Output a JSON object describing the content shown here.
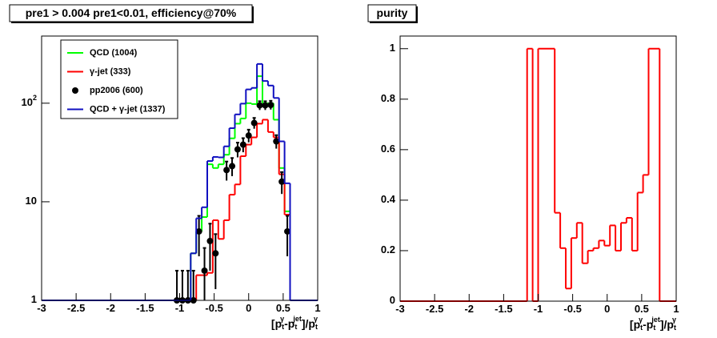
{
  "chart_data": [
    {
      "type": "histogram",
      "title": "pre1 > 0.004  pre1<0.01, efficiency@70%",
      "xlabel": "[p_{t}^{γ}-p_{t}^{jet}]/p_{t}^{γ}",
      "bins": [
        -3,
        -0.84,
        -0.76,
        -0.68,
        -0.6,
        -0.52,
        -0.44,
        -0.36,
        -0.28,
        -0.2,
        -0.12,
        -0.04,
        0.04,
        0.12,
        0.2,
        0.28,
        0.36,
        0.44,
        0.52,
        0.6,
        1
      ],
      "series": [
        {
          "name": "QCD (1004)",
          "color": "#00ff00",
          "values": [
            0,
            3,
            5,
            7,
            24,
            22,
            24,
            30,
            44,
            62,
            70,
            100,
            98,
            188,
            100,
            100,
            68,
            22,
            8,
            0
          ]
        },
        {
          "name": "γ-jet (333)",
          "color": "#ff0000",
          "values": [
            0,
            0,
            1.8,
            1.8,
            1.9,
            6.5,
            4.2,
            6.5,
            11.8,
            15,
            29,
            38,
            45,
            62,
            68,
            51,
            45,
            19,
            7.4,
            0
          ]
        },
        {
          "name": "pp2006 (600)",
          "color": "#000000",
          "x": [
            -1.04,
            -0.96,
            -0.88,
            -0.8,
            -0.72,
            -0.64,
            -0.56,
            -0.48,
            -0.32,
            -0.24,
            -0.16,
            -0.08,
            0,
            0.08,
            0.16,
            0.24,
            0.32,
            0.4,
            0.48,
            0.56
          ],
          "values": [
            1,
            1,
            1,
            1,
            5,
            2,
            4,
            3,
            21,
            23,
            34,
            38,
            47,
            63,
            95,
            95,
            96,
            41,
            16,
            5
          ],
          "errors": [
            1,
            1,
            1,
            1,
            2.2,
            1.4,
            2,
            1.7,
            4.6,
            4.8,
            5.8,
            6.2,
            6.9,
            7.9,
            9.7,
            9.7,
            9.8,
            6.4,
            4,
            2.2
          ]
        },
        {
          "name": "QCD + γ-jet (1337)",
          "color": "#1010c0",
          "values": [
            0,
            3,
            6.8,
            8.8,
            25.9,
            28.5,
            28.2,
            36.5,
            55.8,
            77,
            99,
            138,
            143,
            250,
            168,
            151,
            113,
            41,
            15.4,
            0
          ]
        }
      ],
      "xlim": [
        -3,
        1
      ],
      "ylim": [
        1,
        480
      ],
      "log_y": true,
      "xticks": [
        -3,
        -2.5,
        -2,
        -1.5,
        -1,
        -0.5,
        0,
        0.5,
        1
      ],
      "yticks": [
        1,
        10,
        {
          "value": 100,
          "label": "10^{2}"
        }
      ],
      "legend": "top-left"
    },
    {
      "type": "histogram",
      "title": "purity",
      "xlabel": "[p_{t}^{γ}-p_{t}^{jet}]/p_{t}^{γ}",
      "bins": [
        -3,
        -1.16,
        -1.08,
        -1.0,
        -0.76,
        -0.68,
        -0.6,
        -0.52,
        -0.44,
        -0.36,
        -0.28,
        -0.2,
        -0.12,
        -0.04,
        0.04,
        0.12,
        0.2,
        0.28,
        0.36,
        0.44,
        0.52,
        0.6,
        0.76,
        1
      ],
      "series": [
        {
          "color": "#ff0000",
          "values": [
            0,
            1,
            0,
            1,
            0.35,
            0.21,
            0.05,
            0.25,
            0.31,
            0.15,
            0.2,
            0.21,
            0.24,
            0.22,
            0.3,
            0.2,
            0.31,
            0.33,
            0.2,
            0.43,
            0.5,
            1,
            0
          ]
        }
      ],
      "xlim": [
        -3,
        1
      ],
      "ylim": [
        0,
        1.05
      ],
      "log_y": false,
      "xticks": [
        -3,
        -2.5,
        -2,
        -1.5,
        -1,
        -0.5,
        0,
        0.5,
        1
      ],
      "yticks": [
        0,
        0.2,
        0.4,
        0.6,
        0.8,
        1
      ]
    }
  ]
}
